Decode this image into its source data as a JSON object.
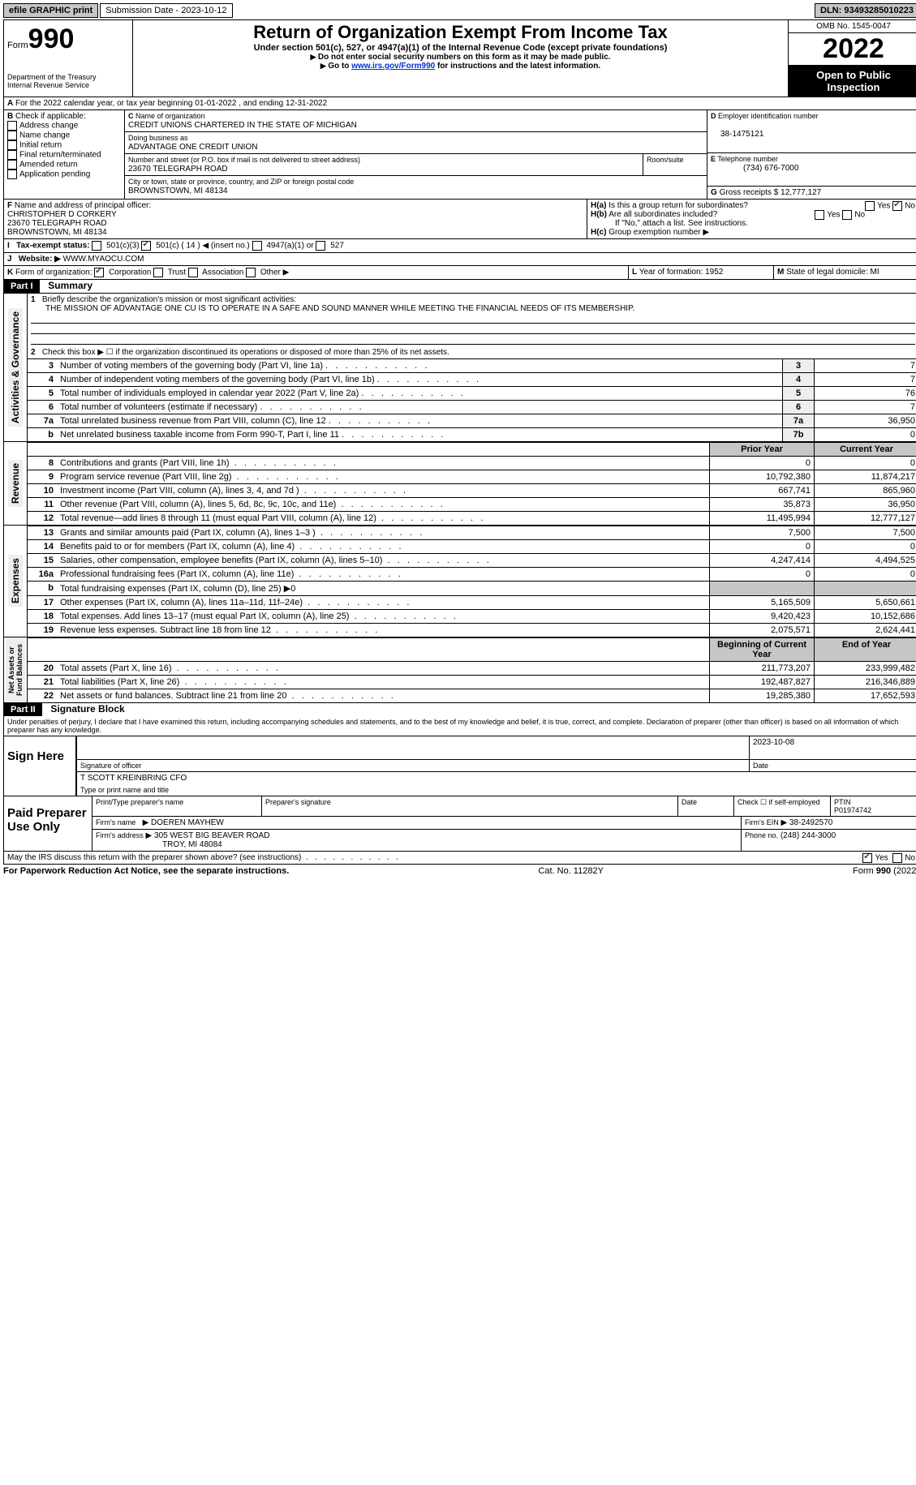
{
  "topbar": {
    "efile_label": "efile GRAPHIC print",
    "submission_label": "Submission Date - 2023-10-12",
    "dln_label": "DLN: 93493285010223"
  },
  "header": {
    "form_word": "Form",
    "form_num": "990",
    "dept": "Department of the Treasury",
    "irs": "Internal Revenue Service",
    "title": "Return of Organization Exempt From Income Tax",
    "sub1": "Under section 501(c), 527, or 4947(a)(1) of the Internal Revenue Code (except private foundations)",
    "sub2": "Do not enter social security numbers on this form as it may be made public.",
    "sub3_pre": "Go to ",
    "sub3_link": "www.irs.gov/Form990",
    "sub3_post": " for instructions and the latest information.",
    "omb": "OMB No. 1545-0047",
    "year": "2022",
    "otp": "Open to Public Inspection"
  },
  "sectionA": {
    "line": "For the 2022 calendar year, or tax year beginning 01-01-2022   , and ending 12-31-2022"
  },
  "sectionB": {
    "label": "Check if applicable:",
    "opts": [
      "Address change",
      "Name change",
      "Initial return",
      "Final return/terminated",
      "Amended return",
      "Application pending"
    ]
  },
  "sectionC": {
    "name_lbl": "Name of organization",
    "name": "CREDIT UNIONS CHARTERED IN THE STATE OF MICHIGAN",
    "dba_lbl": "Doing business as",
    "dba": "ADVANTAGE ONE CREDIT UNION",
    "street_lbl": "Number and street (or P.O. box if mail is not delivered to street address)",
    "room_lbl": "Room/suite",
    "street": "23670 TELEGRAPH ROAD",
    "city_lbl": "City or town, state or province, country, and ZIP or foreign postal code",
    "city": "BROWNSTOWN, MI  48134"
  },
  "sectionD": {
    "lbl": "Employer identification number",
    "val": "38-1475121"
  },
  "sectionE": {
    "lbl": "Telephone number",
    "val": "(734) 676-7000"
  },
  "sectionG": {
    "lbl": "Gross receipts $",
    "val": "12,777,127"
  },
  "sectionF": {
    "lbl": "Name and address of principal officer:",
    "name": "CHRISTOPHER D CORKERY",
    "street": "23670 TELEGRAPH ROAD",
    "city": "BROWNSTOWN, MI  48134"
  },
  "sectionH": {
    "a": "Is this a group return for subordinates?",
    "b": "Are all subordinates included?",
    "note": "If \"No,\" attach a list. See instructions.",
    "c": "Group exemption number"
  },
  "sectionI": {
    "lbl": "Tax-exempt status:",
    "opts": [
      "501(c)(3)",
      "501(c) ( 14 )",
      "(insert no.)",
      "4947(a)(1) or",
      "527"
    ]
  },
  "sectionJ": {
    "lbl": "Website:",
    "val": "WWW.MYAOCU.COM"
  },
  "sectionK": {
    "lbl": "Form of organization:",
    "opts": [
      "Corporation",
      "Trust",
      "Association",
      "Other"
    ]
  },
  "sectionL": {
    "lbl": "Year of formation:",
    "val": "1952"
  },
  "sectionM": {
    "lbl": "State of legal domicile:",
    "val": "MI"
  },
  "part1": {
    "hdr": "Part I",
    "title": "Summary",
    "q1_lbl": "Briefly describe the organization's mission or most significant activities:",
    "q1_val": "THE MISSION OF ADVANTAGE ONE CU IS TO OPERATE IN A SAFE AND SOUND MANNER WHILE MEETING THE FINANCIAL NEEDS OF ITS MEMBERSHIP.",
    "q2": "Check this box ▶ ☐ if the organization discontinued its operations or disposed of more than 25% of its net assets.",
    "side_a": "Activities & Governance",
    "side_r": "Revenue",
    "side_e": "Expenses",
    "side_n": "Net Assets or Fund Balances",
    "col_prior": "Prior Year",
    "col_curr": "Current Year",
    "col_boy": "Beginning of Current Year",
    "col_eoy": "End of Year",
    "rows_a": [
      {
        "n": "3",
        "d": "Number of voting members of the governing body (Part VI, line 1a)",
        "ln": "3",
        "v": "7"
      },
      {
        "n": "4",
        "d": "Number of independent voting members of the governing body (Part VI, line 1b)",
        "ln": "4",
        "v": "7"
      },
      {
        "n": "5",
        "d": "Total number of individuals employed in calendar year 2022 (Part V, line 2a)",
        "ln": "5",
        "v": "76"
      },
      {
        "n": "6",
        "d": "Total number of volunteers (estimate if necessary)",
        "ln": "6",
        "v": "7"
      },
      {
        "n": "7a",
        "d": "Total unrelated business revenue from Part VIII, column (C), line 12",
        "ln": "7a",
        "v": "36,950"
      },
      {
        "n": "b",
        "d": "Net unrelated business taxable income from Form 990-T, Part I, line 11",
        "ln": "7b",
        "v": "0"
      }
    ],
    "rows_r": [
      {
        "n": "8",
        "d": "Contributions and grants (Part VIII, line 1h)",
        "p": "0",
        "c": "0"
      },
      {
        "n": "9",
        "d": "Program service revenue (Part VIII, line 2g)",
        "p": "10,792,380",
        "c": "11,874,217"
      },
      {
        "n": "10",
        "d": "Investment income (Part VIII, column (A), lines 3, 4, and 7d )",
        "p": "667,741",
        "c": "865,960"
      },
      {
        "n": "11",
        "d": "Other revenue (Part VIII, column (A), lines 5, 6d, 8c, 9c, 10c, and 11e)",
        "p": "35,873",
        "c": "36,950"
      },
      {
        "n": "12",
        "d": "Total revenue—add lines 8 through 11 (must equal Part VIII, column (A), line 12)",
        "p": "11,495,994",
        "c": "12,777,127"
      }
    ],
    "rows_e": [
      {
        "n": "13",
        "d": "Grants and similar amounts paid (Part IX, column (A), lines 1–3 )",
        "p": "7,500",
        "c": "7,500"
      },
      {
        "n": "14",
        "d": "Benefits paid to or for members (Part IX, column (A), line 4)",
        "p": "0",
        "c": "0"
      },
      {
        "n": "15",
        "d": "Salaries, other compensation, employee benefits (Part IX, column (A), lines 5–10)",
        "p": "4,247,414",
        "c": "4,494,525"
      },
      {
        "n": "16a",
        "d": "Professional fundraising fees (Part IX, column (A), line 11e)",
        "p": "0",
        "c": "0"
      },
      {
        "n": "b",
        "d": "Total fundraising expenses (Part IX, column (D), line 25) ▶0",
        "p": "",
        "c": "",
        "gray": true
      },
      {
        "n": "17",
        "d": "Other expenses (Part IX, column (A), lines 11a–11d, 11f–24e)",
        "p": "5,165,509",
        "c": "5,650,661"
      },
      {
        "n": "18",
        "d": "Total expenses. Add lines 13–17 (must equal Part IX, column (A), line 25)",
        "p": "9,420,423",
        "c": "10,152,686"
      },
      {
        "n": "19",
        "d": "Revenue less expenses. Subtract line 18 from line 12",
        "p": "2,075,571",
        "c": "2,624,441"
      }
    ],
    "rows_n": [
      {
        "n": "20",
        "d": "Total assets (Part X, line 16)",
        "p": "211,773,207",
        "c": "233,999,482"
      },
      {
        "n": "21",
        "d": "Total liabilities (Part X, line 26)",
        "p": "192,487,827",
        "c": "216,346,889"
      },
      {
        "n": "22",
        "d": "Net assets or fund balances. Subtract line 21 from line 20",
        "p": "19,285,380",
        "c": "17,652,593"
      }
    ]
  },
  "part2": {
    "hdr": "Part II",
    "title": "Signature Block",
    "decl": "Under penalties of perjury, I declare that I have examined this return, including accompanying schedules and statements, and to the best of my knowledge and belief, it is true, correct, and complete. Declaration of preparer (other than officer) is based on all information of which preparer has any knowledge.",
    "sign_here": "Sign Here",
    "sig_officer": "Signature of officer",
    "sig_date": "2023-10-08",
    "date_lbl": "Date",
    "officer_name": "T SCOTT KREINBRING CFO",
    "type_print": "Type or print name and title",
    "paid": "Paid Preparer Use Only",
    "prep_name_lbl": "Print/Type preparer's name",
    "prep_sig_lbl": "Preparer's signature",
    "check_if": "Check ☐ if self-employed",
    "ptin_lbl": "PTIN",
    "ptin": "P01974742",
    "firm_lbl": "Firm's name",
    "firm": "DOEREN MAYHEW",
    "ein_lbl": "Firm's EIN",
    "ein": "38-2492570",
    "addr_lbl": "Firm's address",
    "addr1": "305 WEST BIG BEAVER ROAD",
    "addr2": "TROY, MI  48084",
    "phone_lbl": "Phone no.",
    "phone": "(248) 244-3000",
    "discuss": "May the IRS discuss this return with the preparer shown above? (see instructions)",
    "yes": "Yes",
    "no": "No"
  },
  "footer": {
    "l": "For Paperwork Reduction Act Notice, see the separate instructions.",
    "c": "Cat. No. 11282Y",
    "r": "Form 990 (2022)"
  }
}
